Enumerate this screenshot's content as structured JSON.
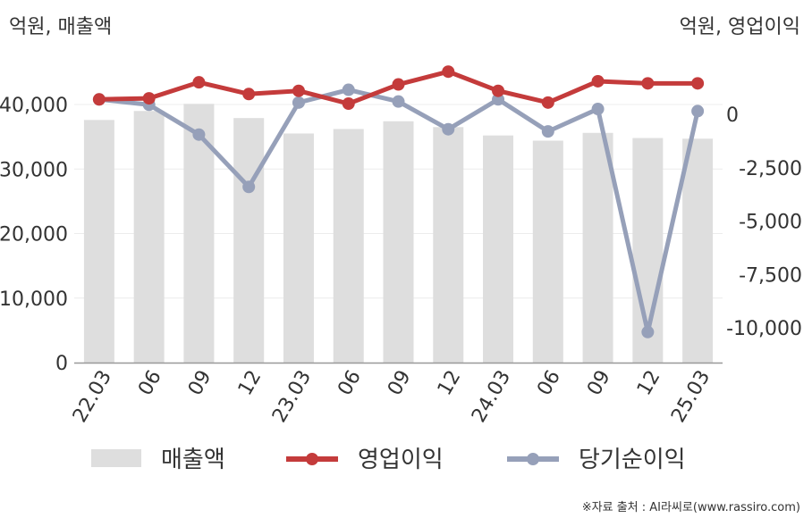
{
  "chart_data": {
    "type": "bar+line",
    "left_unit_label": "억원, 매출액",
    "right_unit_label": "억원, 영업이익",
    "categories": [
      "22.03",
      "06",
      "09",
      "12",
      "23.03",
      "06",
      "09",
      "12",
      "24.03",
      "06",
      "09",
      "12",
      "25.03"
    ],
    "left_axis": {
      "ticks": [
        "0",
        "10,000",
        "20,000",
        "30,000",
        "40,000"
      ],
      "tick_values": [
        0,
        10000,
        20000,
        30000,
        40000
      ]
    },
    "right_axis": {
      "ticks": [
        "0",
        "-2,500",
        "-5,000",
        "-7,500",
        "-10,000"
      ],
      "tick_values": [
        0,
        -2500,
        -5000,
        -7500,
        -10000
      ]
    },
    "series": [
      {
        "name": "매출액",
        "type": "bar",
        "axis": "left",
        "color": "#dedede",
        "values": [
          37600,
          39000,
          40100,
          37900,
          35500,
          36200,
          37400,
          36500,
          35200,
          34400,
          35600,
          34800,
          34700
        ]
      },
      {
        "name": "영업이익",
        "type": "line",
        "axis": "right",
        "color": "#c43b3b",
        "values": [
          700,
          750,
          1500,
          950,
          1100,
          500,
          1400,
          2000,
          1100,
          550,
          1550,
          1450,
          1450
        ]
      },
      {
        "name": "당기순이익",
        "type": "line",
        "axis": "right",
        "color": "#96a0b9",
        "values": [
          700,
          450,
          -950,
          -3400,
          550,
          1150,
          600,
          -700,
          700,
          -800,
          250,
          -10200,
          150
        ]
      }
    ],
    "legend_position": "bottom"
  },
  "source_note": "※자료 출처 : AI라씨로(www.rassiro.com)"
}
